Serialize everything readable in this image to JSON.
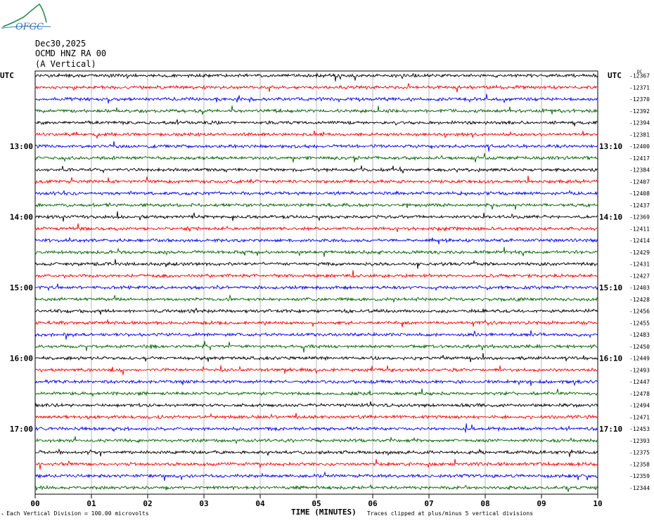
{
  "logo": {
    "text": "OFGC"
  },
  "header": {
    "date": "Dec30,2025",
    "station": "OCMD HNZ RA 00",
    "component": "(A Vertical)"
  },
  "left_axis_title": "UTC",
  "right_axis_title": "UTC",
  "right_top_note": "DC",
  "footer": {
    "scale_note": "Each Vertical Division =  100.00 microvolts",
    "clip_note": "Traces clipped at plus/minus 5 vertical divisions"
  },
  "chart_data": {
    "type": "line",
    "title": "OCMD HNZ RA 00 (A Vertical)",
    "xlabel": "TIME (MINUTES)",
    "x_ticks": [
      "00",
      "01",
      "02",
      "03",
      "04",
      "05",
      "06",
      "07",
      "08",
      "09",
      "10"
    ],
    "xlim": [
      0,
      10
    ],
    "left_time_labels": [
      {
        "row": 6,
        "label": "13:00"
      },
      {
        "row": 12,
        "label": "14:00"
      },
      {
        "row": 18,
        "label": "15:00"
      },
      {
        "row": 24,
        "label": "16:00"
      },
      {
        "row": 30,
        "label": "17:00"
      }
    ],
    "right_time_labels": [
      {
        "row": 6,
        "label": "13:10"
      },
      {
        "row": 12,
        "label": "14:10"
      },
      {
        "row": 18,
        "label": "15:10"
      },
      {
        "row": 24,
        "label": "16:10"
      },
      {
        "row": 30,
        "label": "17:10"
      }
    ],
    "trace_colors": [
      "#000000",
      "#ff0000",
      "#0000ff",
      "#006400"
    ],
    "dc_offsets": [
      -12367,
      -12371,
      -12370,
      -12392,
      -12394,
      -12381,
      -12400,
      -12417,
      -12384,
      -12407,
      -12408,
      -12437,
      -12369,
      -12411,
      -12414,
      -12429,
      -12431,
      -12427,
      -12403,
      -12428,
      -12456,
      -12455,
      -12483,
      -12450,
      -12449,
      -12493,
      -12447,
      -12478,
      -12494,
      -12471,
      -12453,
      -12393,
      -12375,
      -12358,
      -12359,
      -12344
    ]
  }
}
